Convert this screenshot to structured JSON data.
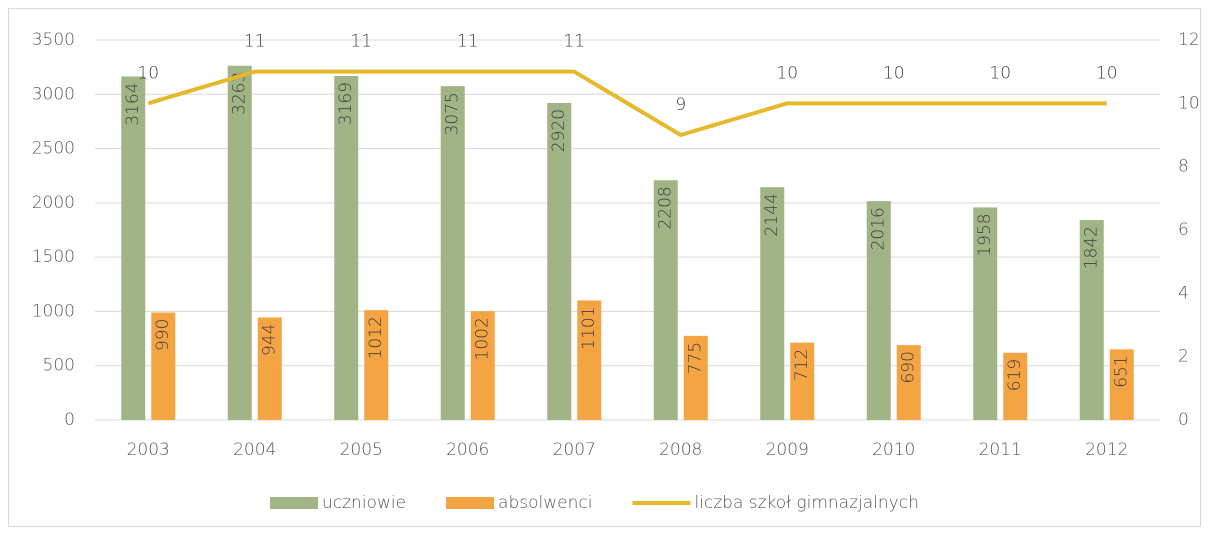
{
  "chart_data": {
    "type": "bar",
    "categories": [
      "2003",
      "2004",
      "2005",
      "2006",
      "2007",
      "2008",
      "2009",
      "2010",
      "2011",
      "2012"
    ],
    "series": [
      {
        "name": "uczniowie",
        "type": "bar",
        "color": "#a0b486",
        "values": [
          3164,
          3263,
          3169,
          3075,
          2920,
          2208,
          2144,
          2016,
          1958,
          1842
        ]
      },
      {
        "name": "absolwenci",
        "type": "bar",
        "color": "#f4a443",
        "values": [
          990,
          944,
          1012,
          1002,
          1101,
          775,
          712,
          690,
          619,
          651
        ]
      },
      {
        "name": "liczba szkoł gimnazjalnych",
        "type": "line",
        "axis": "y2",
        "color": "#e6b92a",
        "values": [
          10,
          11,
          11,
          11,
          11,
          9,
          10,
          10,
          10,
          10
        ]
      }
    ],
    "ylim": [
      0,
      3500
    ],
    "yticks": [
      0,
      500,
      1000,
      1500,
      2000,
      2500,
      3000,
      3500
    ],
    "y2lim": [
      0,
      12
    ],
    "y2ticks": [
      0,
      2,
      4,
      6,
      8,
      10,
      12
    ],
    "grid": true,
    "legend": "bottom"
  }
}
